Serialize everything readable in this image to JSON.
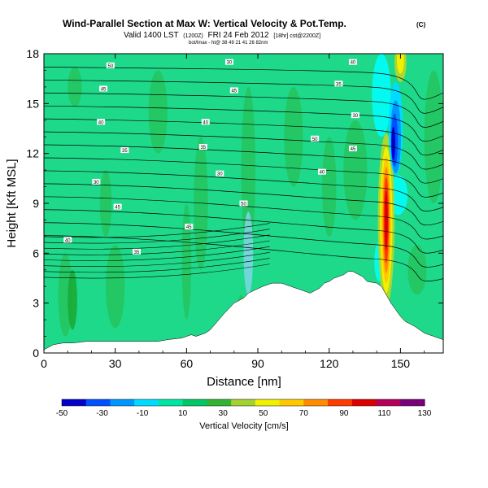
{
  "title": "Wind-Parallel Section at Max W: Vertical Velocity & Pot.Temp.",
  "copyright": "(C)",
  "valid_line": "Valid 1400 LST",
  "valid_small": "(1200Z)",
  "valid_date": "FRI 24 Feb 2012",
  "valid_tail": "[18hr] cst@2200Z]",
  "sub_line": "bot/lmax - ht@ 38 49 21 41 26 82nm",
  "chart_data": {
    "type": "heatmap",
    "title": "Wind-Parallel Section at Max W: Vertical Velocity & Pot.Temp.",
    "xlabel": "Distance [nm]",
    "ylabel": "Height [Kft MSL]",
    "xlim": [
      0,
      168
    ],
    "ylim": [
      0,
      18
    ],
    "xticks": [
      0,
      30,
      60,
      90,
      120,
      150
    ],
    "yticks": [
      0,
      3,
      6,
      9,
      12,
      15,
      18
    ],
    "colorbar": {
      "label": "Vertical Velocity [cm/s]",
      "ticks": [
        -50,
        -30,
        -10,
        10,
        30,
        50,
        70,
        90,
        110,
        130
      ],
      "colors": [
        "#0000c8",
        "#0050ff",
        "#0096ff",
        "#00dcff",
        "#00e6a0",
        "#00c864",
        "#32b432",
        "#a0d232",
        "#f0f000",
        "#ffc800",
        "#ff8c00",
        "#ff3c00",
        "#dc0000",
        "#b4005a",
        "#780078"
      ]
    },
    "terrain_profile": {
      "x": [
        0,
        4,
        8,
        12,
        18,
        20,
        44,
        48,
        52,
        58,
        62,
        64,
        68,
        70,
        73,
        76,
        80,
        84,
        86,
        89,
        92,
        96,
        100,
        104,
        108,
        112,
        116,
        118,
        120,
        122,
        126,
        128,
        130,
        134,
        136,
        140,
        142,
        146,
        150,
        152,
        156,
        160,
        164,
        168
      ],
      "y": [
        0.2,
        0.5,
        0.6,
        0.6,
        0.7,
        0.7,
        0.7,
        0.7,
        0.8,
        0.9,
        1.1,
        1.0,
        1.2,
        1.4,
        1.9,
        2.4,
        3.0,
        3.3,
        3.6,
        3.8,
        4.0,
        4.2,
        4.2,
        4.0,
        3.8,
        3.6,
        3.9,
        4.2,
        4.3,
        4.5,
        4.7,
        4.9,
        4.9,
        4.6,
        4.3,
        4.2,
        4.0,
        3.0,
        2.2,
        1.9,
        1.6,
        1.2,
        1.0,
        0.8
      ]
    },
    "isentrope_labels": [
      "50",
      "45",
      "40",
      "35",
      "30",
      "45",
      "40",
      "35",
      "30",
      "45",
      "40",
      "35",
      "30",
      "50",
      "45",
      "40",
      "35",
      "30"
    ]
  }
}
